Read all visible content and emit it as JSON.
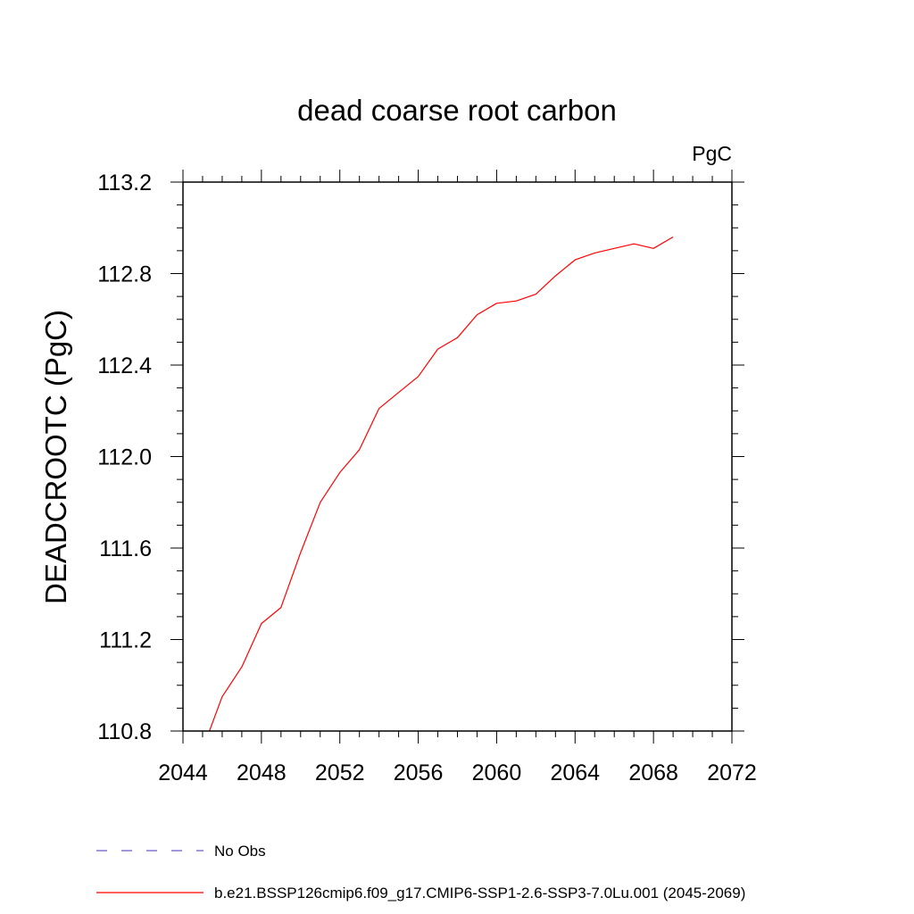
{
  "chart_data": {
    "type": "line",
    "title": "dead coarse root carbon",
    "units": "PgC",
    "ylabel": "DEADCROOTC  (PgC)",
    "xlabel": "",
    "xlim": [
      2044,
      2072
    ],
    "ylim": [
      110.8,
      113.2
    ],
    "x_ticks": [
      "2044",
      "2048",
      "2052",
      "2056",
      "2060",
      "2064",
      "2068",
      "2072"
    ],
    "y_ticks": [
      "110.8",
      "111.2",
      "111.6",
      "112.0",
      "112.4",
      "112.8",
      "113.2"
    ],
    "grid": false,
    "legend_position": "bottom",
    "series": [
      {
        "name": "b.e21.BSSP126cmip6.f09_g17.CMIP6-SSP1-2.6-SSP3-7.0Lu.001 (2045-2069)",
        "color": "#ff0000",
        "style": "solid",
        "x": [
          2045,
          2046,
          2047,
          2048,
          2049,
          2050,
          2051,
          2052,
          2053,
          2054,
          2055,
          2056,
          2057,
          2058,
          2059,
          2060,
          2061,
          2062,
          2063,
          2064,
          2065,
          2066,
          2067,
          2068,
          2069
        ],
        "values": [
          110.72,
          110.95,
          111.08,
          111.27,
          111.34,
          111.58,
          111.8,
          111.93,
          112.03,
          112.21,
          112.28,
          112.35,
          112.47,
          112.52,
          112.62,
          112.67,
          112.68,
          112.71,
          112.79,
          112.86,
          112.89,
          112.91,
          112.93,
          112.91,
          112.96
        ]
      }
    ],
    "legend": [
      {
        "label": "No Obs",
        "color": "#6a5acd",
        "style": "dashed"
      },
      {
        "label": "b.e21.BSSP126cmip6.f09_g17.CMIP6-SSP1-2.6-SSP3-7.0Lu.001 (2045-2069)",
        "color": "#ff0000",
        "style": "solid"
      }
    ]
  }
}
